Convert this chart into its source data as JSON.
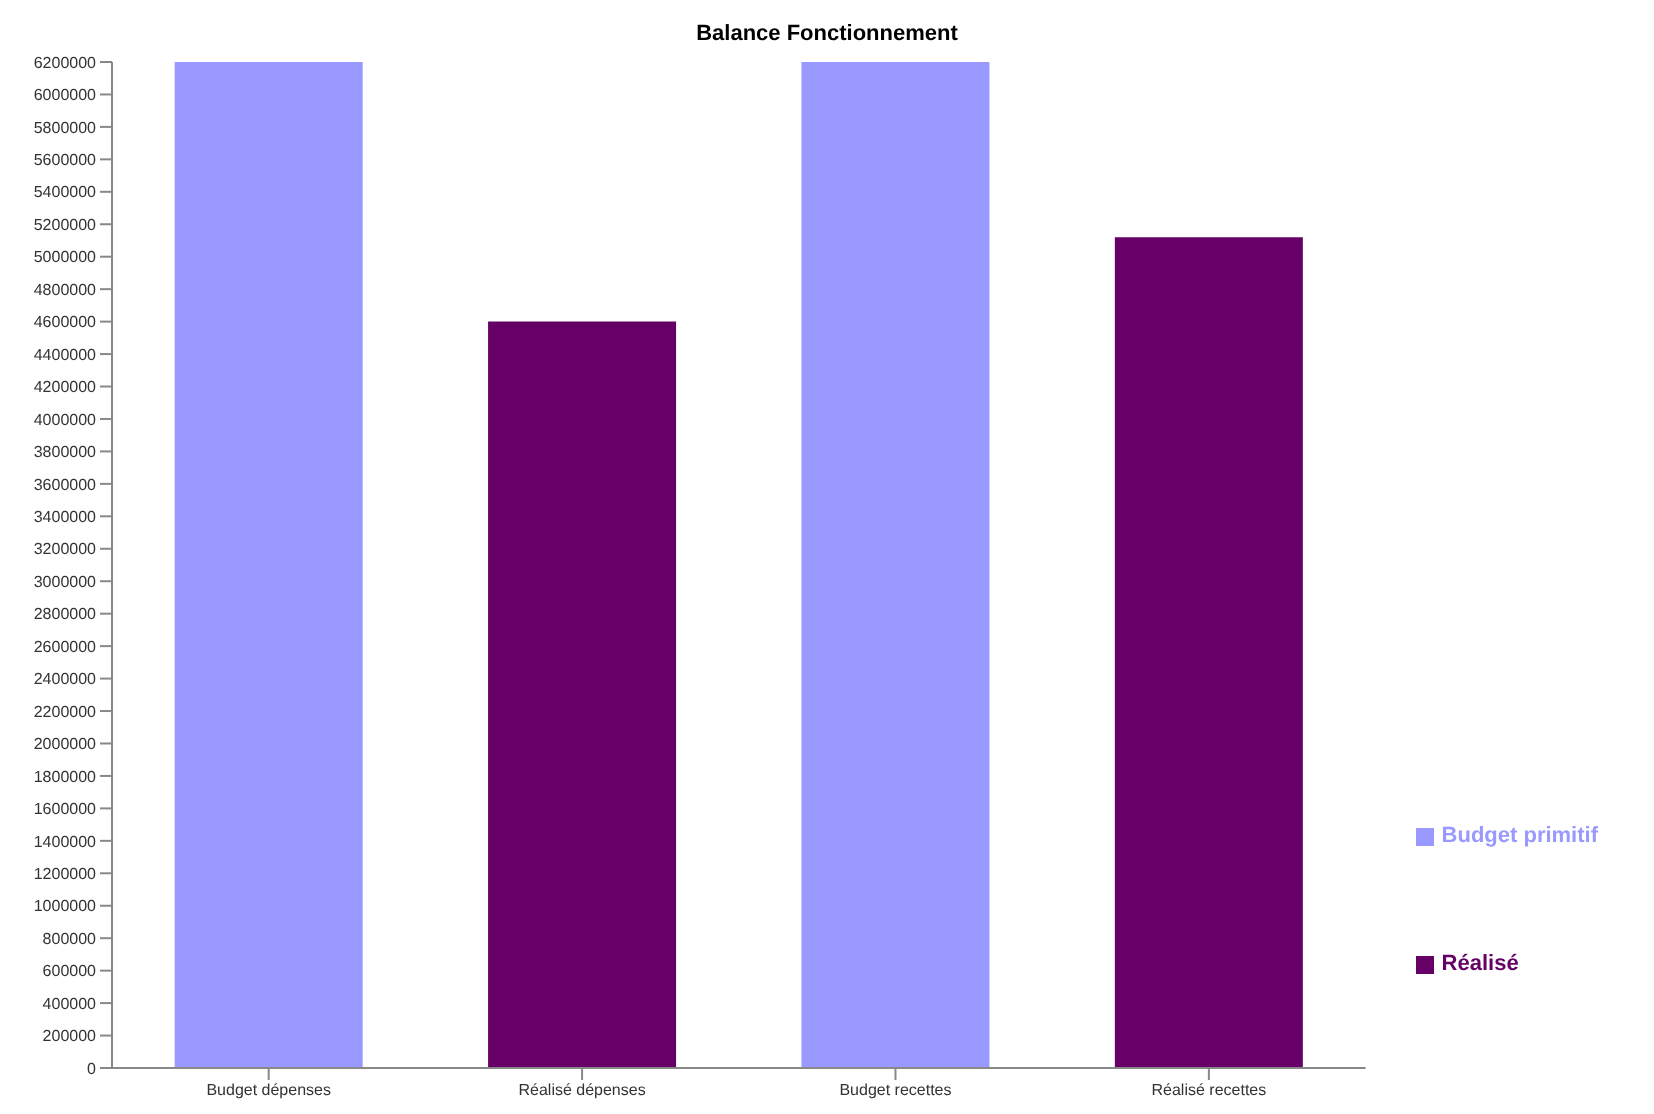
{
  "chart_data": {
    "type": "bar",
    "title": "Balance Fonctionnement",
    "categories": [
      "Budget dépenses",
      "Réalisé dépenses",
      "Budget recettes",
      "Réalisé recettes"
    ],
    "stacked": true,
    "series": [
      {
        "name": "Réalisé",
        "color": "#660066",
        "values": [
          null,
          4600000,
          null,
          5120000
        ]
      },
      {
        "name": "Budget primitif",
        "color": "#9999ff",
        "values": [
          6200000,
          null,
          6200000,
          null
        ]
      }
    ],
    "ylim": [
      0,
      6200000
    ],
    "yticks": [
      0,
      200000,
      400000,
      600000,
      800000,
      1000000,
      1200000,
      1400000,
      1600000,
      1800000,
      2000000,
      2200000,
      2400000,
      2600000,
      2800000,
      3000000,
      3200000,
      3400000,
      3600000,
      3800000,
      4000000,
      4200000,
      4400000,
      4600000,
      4800000,
      5000000,
      5200000,
      5400000,
      5600000,
      5800000,
      6000000,
      6200000
    ],
    "grid": false,
    "legend": "right"
  }
}
